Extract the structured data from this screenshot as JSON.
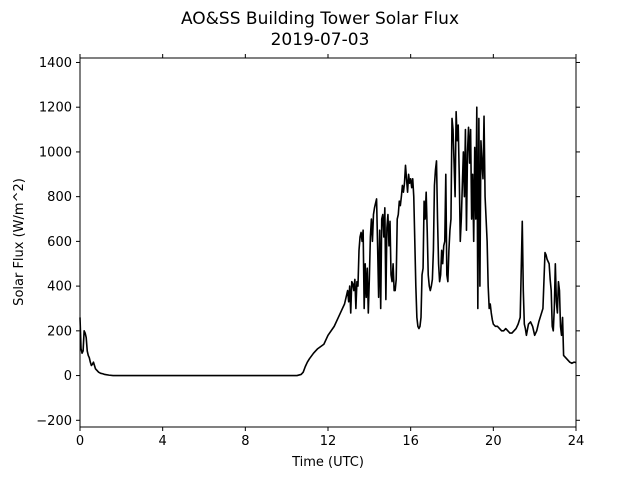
{
  "chart_data": {
    "type": "line",
    "title": "AO&SS Building Tower Solar Flux",
    "subtitle": "2019-07-03",
    "xlabel": "Time (UTC)",
    "ylabel": "Solar Flux (W/m^2)",
    "xlim": [
      0,
      24
    ],
    "ylim": [
      -230,
      1420
    ],
    "xticks": [
      0,
      4,
      8,
      12,
      16,
      20,
      24
    ],
    "yticks": [
      -200,
      0,
      200,
      400,
      600,
      800,
      1000,
      1200,
      1400
    ],
    "grid": false,
    "line_color": "#000000",
    "series": [
      {
        "x": [
          0.0,
          0.05,
          0.1,
          0.15,
          0.2,
          0.25,
          0.3,
          0.35,
          0.4,
          0.45,
          0.5,
          0.55,
          0.6,
          0.65,
          0.7,
          0.75,
          0.8,
          0.85,
          0.9,
          1.0,
          1.1,
          1.2,
          1.4,
          1.6,
          1.8,
          2.0,
          3.0,
          5.0,
          8.0,
          10.0,
          10.5,
          10.7,
          10.8,
          10.9,
          11.0,
          11.1,
          11.3,
          11.5,
          11.8,
          12.0,
          12.3,
          12.5,
          12.7,
          12.8,
          12.9,
          12.95,
          13.0,
          13.05,
          13.1,
          13.15,
          13.2,
          13.25,
          13.3,
          13.35,
          13.4,
          13.45,
          13.5,
          13.55,
          13.6,
          13.65,
          13.7,
          13.75,
          13.8,
          13.85,
          13.9,
          13.95,
          14.0,
          14.05,
          14.1,
          14.15,
          14.2,
          14.25,
          14.3,
          14.35,
          14.4,
          14.45,
          14.5,
          14.55,
          14.6,
          14.65,
          14.7,
          14.75,
          14.8,
          14.85,
          14.9,
          14.95,
          15.0,
          15.05,
          15.1,
          15.15,
          15.2,
          15.25,
          15.3,
          15.35,
          15.4,
          15.45,
          15.5,
          15.55,
          15.6,
          15.65,
          15.7,
          15.75,
          15.8,
          15.85,
          15.9,
          15.95,
          16.0,
          16.05,
          16.1,
          16.15,
          16.2,
          16.25,
          16.3,
          16.35,
          16.4,
          16.45,
          16.5,
          16.55,
          16.6,
          16.65,
          16.7,
          16.75,
          16.8,
          16.85,
          16.9,
          16.95,
          17.0,
          17.05,
          17.1,
          17.15,
          17.2,
          17.25,
          17.3,
          17.35,
          17.4,
          17.45,
          17.5,
          17.55,
          17.6,
          17.65,
          17.7,
          17.75,
          17.8,
          17.85,
          17.9,
          17.95,
          18.0,
          18.05,
          18.1,
          18.15,
          18.2,
          18.25,
          18.3,
          18.35,
          18.4,
          18.45,
          18.5,
          18.55,
          18.6,
          18.65,
          18.7,
          18.75,
          18.8,
          18.85,
          18.9,
          18.95,
          19.0,
          19.05,
          19.1,
          19.15,
          19.2,
          19.25,
          19.3,
          19.35,
          19.4,
          19.45,
          19.5,
          19.55,
          19.6,
          19.65,
          19.7,
          19.75,
          19.8,
          19.85,
          19.9,
          19.95,
          20.0,
          20.1,
          20.2,
          20.3,
          20.4,
          20.5,
          20.6,
          20.7,
          20.8,
          20.9,
          21.0,
          21.1,
          21.2,
          21.3,
          21.4,
          21.45,
          21.5,
          21.55,
          21.6,
          21.7,
          21.8,
          21.9,
          22.0,
          22.1,
          22.2,
          22.3,
          22.4,
          22.5,
          22.55,
          22.6,
          22.65,
          22.7,
          22.75,
          22.8,
          22.85,
          22.9,
          22.95,
          23.0,
          23.05,
          23.1,
          23.15,
          23.2,
          23.25,
          23.3,
          23.35,
          23.4,
          23.5,
          23.6,
          23.7,
          23.8,
          23.9,
          24.0
        ],
        "values": [
          260,
          120,
          100,
          110,
          200,
          190,
          170,
          110,
          90,
          80,
          60,
          45,
          50,
          60,
          45,
          30,
          25,
          20,
          15,
          10,
          8,
          5,
          2,
          0,
          0,
          0,
          0,
          0,
          0,
          0,
          0,
          5,
          15,
          40,
          60,
          75,
          100,
          120,
          140,
          180,
          220,
          260,
          300,
          320,
          360,
          380,
          330,
          400,
          280,
          420,
          410,
          380,
          430,
          300,
          420,
          400,
          560,
          620,
          640,
          600,
          650,
          300,
          500,
          350,
          480,
          280,
          430,
          620,
          700,
          600,
          720,
          750,
          770,
          790,
          580,
          350,
          650,
          300,
          700,
          720,
          620,
          750,
          340,
          660,
          720,
          580,
          690,
          450,
          420,
          500,
          380,
          380,
          430,
          700,
          720,
          780,
          760,
          800,
          850,
          820,
          860,
          940,
          880,
          820,
          900,
          860,
          880,
          840,
          880,
          800,
          600,
          400,
          260,
          220,
          210,
          220,
          260,
          450,
          480,
          780,
          700,
          820,
          650,
          450,
          400,
          380,
          400,
          430,
          560,
          850,
          920,
          960,
          700,
          500,
          420,
          450,
          560,
          500,
          580,
          600,
          900,
          450,
          420,
          560,
          650,
          700,
          1150,
          1100,
          950,
          800,
          1180,
          1050,
          1120,
          900,
          600,
          700,
          850,
          1000,
          800,
          1100,
          650,
          1000,
          1110,
          950,
          1100,
          700,
          900,
          600,
          1020,
          700,
          1200,
          300,
          1150,
          400,
          1050,
          950,
          880,
          1160,
          800,
          700,
          600,
          400,
          300,
          320,
          280,
          250,
          230,
          220,
          220,
          210,
          200,
          200,
          210,
          200,
          190,
          190,
          200,
          210,
          230,
          260,
          690,
          380,
          230,
          210,
          180,
          230,
          240,
          220,
          180,
          200,
          240,
          270,
          300,
          550,
          540,
          520,
          510,
          500,
          430,
          380,
          220,
          200,
          300,
          500,
          330,
          280,
          420,
          380,
          220,
          180,
          260,
          90,
          80,
          70,
          60,
          55,
          60,
          58
        ]
      }
    ]
  }
}
